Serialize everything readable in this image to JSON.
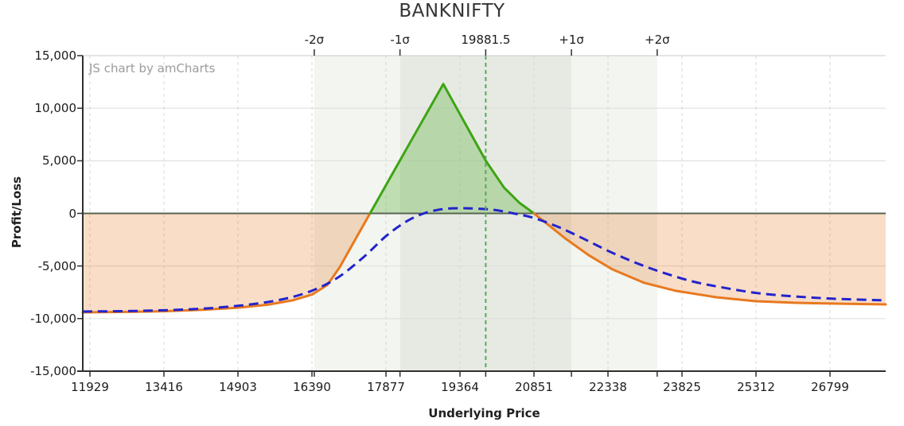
{
  "title": "BANKNIFTY",
  "watermark": "JS chart by amCharts",
  "chart_data": {
    "type": "line",
    "title": "BANKNIFTY",
    "xlabel": "Underlying Price",
    "ylabel": "Profit/Loss",
    "grid": true,
    "legend_position": "none",
    "ylim": [
      -15000,
      15000
    ],
    "y_ticks": [
      -15000,
      -10000,
      -5000,
      0,
      5000,
      10000,
      15000
    ],
    "y_tick_labels": [
      "-15,000",
      "-10,000",
      "-5,000",
      "0",
      "5,000",
      "10,000",
      "15,000"
    ],
    "x_ticks": [
      11929,
      13416,
      14903,
      16390,
      17877,
      19364,
      20851,
      22338,
      23825,
      25312,
      26799
    ],
    "x_range": [
      11785,
      27918
    ],
    "current_price": 19881.5,
    "sigma": 1722.5,
    "top_axis_labels": [
      {
        "text": "-2σ",
        "price": 16436.5
      },
      {
        "text": "-1σ",
        "price": 18159
      },
      {
        "text": "19881.5",
        "price": 19881.5
      },
      {
        "text": "+1σ",
        "price": 21604
      },
      {
        "text": "+2σ",
        "price": 23326.5
      }
    ],
    "bands": [
      {
        "name": "minus2-to-minus1-sigma",
        "from": 16436.5,
        "to": 18159,
        "shade": "light"
      },
      {
        "name": "minus1-to-plus1-sigma",
        "from": 18159,
        "to": 21604,
        "shade": "dark"
      },
      {
        "name": "plus1-to-plus2-sigma",
        "from": 21604,
        "to": 23326.5,
        "shade": "light"
      }
    ],
    "breakevens": [
      17557,
      20850
    ],
    "max_profit_point": {
      "price": 19029,
      "value": 12300
    },
    "series": [
      {
        "name": "payoff-at-expiry",
        "style": "solid",
        "split_by_sign": true,
        "points": [
          [
            11785,
            -9410
          ],
          [
            12700,
            -9360
          ],
          [
            13416,
            -9300
          ],
          [
            14200,
            -9160
          ],
          [
            14903,
            -8960
          ],
          [
            15500,
            -8680
          ],
          [
            16000,
            -8270
          ],
          [
            16400,
            -7700
          ],
          [
            16700,
            -6800
          ],
          [
            16950,
            -5100
          ],
          [
            17150,
            -3410
          ],
          [
            17557,
            0
          ],
          [
            18300,
            6220
          ],
          [
            19029,
            12300
          ],
          [
            19450,
            8700
          ],
          [
            19890,
            4950
          ],
          [
            20250,
            2450
          ],
          [
            20560,
            1000
          ],
          [
            20850,
            0
          ],
          [
            21160,
            -1170
          ],
          [
            21480,
            -2380
          ],
          [
            21950,
            -3970
          ],
          [
            22430,
            -5330
          ],
          [
            23070,
            -6610
          ],
          [
            23710,
            -7370
          ],
          [
            24510,
            -7970
          ],
          [
            25310,
            -8350
          ],
          [
            26110,
            -8500
          ],
          [
            26910,
            -8580
          ],
          [
            27918,
            -8650
          ]
        ]
      },
      {
        "name": "current-pnl-t0",
        "style": "dashed",
        "split_by_sign": false,
        "points": [
          [
            11785,
            -9330
          ],
          [
            13000,
            -9260
          ],
          [
            14280,
            -9030
          ],
          [
            15400,
            -8500
          ],
          [
            16200,
            -7670
          ],
          [
            16840,
            -6310
          ],
          [
            17400,
            -4270
          ],
          [
            17880,
            -2150
          ],
          [
            18280,
            -790
          ],
          [
            18640,
            0
          ],
          [
            19030,
            420
          ],
          [
            19400,
            490
          ],
          [
            19720,
            450
          ],
          [
            20040,
            340
          ],
          [
            20440,
            0
          ],
          [
            20840,
            -420
          ],
          [
            21320,
            -1250
          ],
          [
            21800,
            -2300
          ],
          [
            22390,
            -3670
          ],
          [
            22910,
            -4720
          ],
          [
            23390,
            -5550
          ],
          [
            24030,
            -6460
          ],
          [
            24670,
            -7070
          ],
          [
            25360,
            -7590
          ],
          [
            26110,
            -7900
          ],
          [
            26910,
            -8120
          ],
          [
            27918,
            -8270
          ]
        ]
      }
    ]
  },
  "colors": {
    "profit_green": "#3ea414",
    "loss_orange": "#e8791f",
    "t0_blue": "#2323cd",
    "fill_positive": "rgba(62,164,20,0.28)",
    "fill_negative": "rgba(232,121,31,0.25)",
    "current_price_line": "#57ab57",
    "band_light": "#f2f5f0",
    "band_dark": "#e6eae3",
    "grid_h": "#dcdcdc",
    "grid_v": "#d8d8d8",
    "zero_line": "#596653",
    "axis_dark": "#303030",
    "axis_top": "#c8ccc6"
  }
}
